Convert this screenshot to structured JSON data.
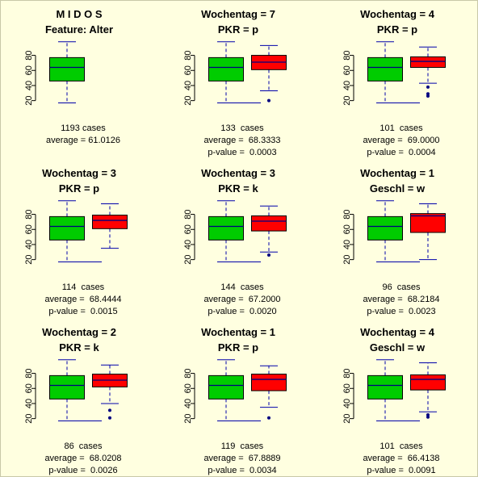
{
  "page": {
    "colors": {
      "background": "#ffffe0",
      "reference_box": "#00cc00",
      "compare_box": "#ff0000",
      "median_line": "#000080",
      "whisker": "#0000aa",
      "outlier": "#000080",
      "axis": "#000000"
    }
  },
  "chart_data": [
    {
      "type": "boxplot",
      "title": "M I D O S",
      "subtitle": "Feature: Alter",
      "yticks": [
        20,
        40,
        60,
        80
      ],
      "ylim": [
        10,
        102
      ],
      "boxes": [
        {
          "role": "reference",
          "min": 17,
          "q1": 46,
          "median": 64,
          "q3": 77,
          "max": 98,
          "outliers": []
        }
      ],
      "text": [
        "1193 cases",
        "average = 61.0126"
      ]
    },
    {
      "type": "boxplot",
      "title": "Wochentag = 7",
      "subtitle": "PKR = p",
      "yticks": [
        20,
        40,
        60,
        80
      ],
      "ylim": [
        10,
        102
      ],
      "boxes": [
        {
          "role": "reference",
          "min": 17,
          "q1": 46,
          "median": 64,
          "q3": 77,
          "max": 98,
          "outliers": []
        },
        {
          "role": "compare",
          "min": 33,
          "q1": 61,
          "median": 71,
          "q3": 80,
          "max": 93,
          "outliers": [
            20
          ]
        }
      ],
      "text": [
        "133  cases",
        "average =  68.3333",
        "p-value =  0.0003"
      ]
    },
    {
      "type": "boxplot",
      "title": "Wochentag = 4",
      "subtitle": "PKR = p",
      "yticks": [
        20,
        40,
        60,
        80
      ],
      "ylim": [
        10,
        102
      ],
      "boxes": [
        {
          "role": "reference",
          "min": 17,
          "q1": 46,
          "median": 64,
          "q3": 77,
          "max": 98,
          "outliers": []
        },
        {
          "role": "compare",
          "min": 43,
          "q1": 64,
          "median": 72,
          "q3": 78,
          "max": 91,
          "outliers": [
            38,
            29,
            26
          ]
        }
      ],
      "text": [
        "101  cases",
        "average =  69.0000",
        "p-value =  0.0004"
      ]
    },
    {
      "type": "boxplot",
      "title": "Wochentag = 3",
      "subtitle": "PKR = p",
      "yticks": [
        20,
        40,
        60,
        80
      ],
      "ylim": [
        10,
        102
      ],
      "boxes": [
        {
          "role": "reference",
          "min": 17,
          "q1": 46,
          "median": 64,
          "q3": 77,
          "max": 98,
          "outliers": []
        },
        {
          "role": "compare",
          "min": 35,
          "q1": 61,
          "median": 72,
          "q3": 79,
          "max": 94,
          "outliers": []
        }
      ],
      "text": [
        "114  cases",
        "average =  68.4444",
        "p-value =  0.0015"
      ]
    },
    {
      "type": "boxplot",
      "title": "Wochentag = 3",
      "subtitle": "PKR = k",
      "yticks": [
        20,
        40,
        60,
        80
      ],
      "ylim": [
        10,
        102
      ],
      "boxes": [
        {
          "role": "reference",
          "min": 17,
          "q1": 46,
          "median": 64,
          "q3": 77,
          "max": 98,
          "outliers": []
        },
        {
          "role": "compare",
          "min": 30,
          "q1": 58,
          "median": 71,
          "q3": 78,
          "max": 91,
          "outliers": [
            26
          ]
        }
      ],
      "text": [
        "144  cases",
        "average =  67.2000",
        "p-value =  0.0020"
      ]
    },
    {
      "type": "boxplot",
      "title": "Wochentag = 1",
      "subtitle": "Geschl = w",
      "yticks": [
        20,
        40,
        60,
        80
      ],
      "ylim": [
        10,
        102
      ],
      "boxes": [
        {
          "role": "reference",
          "min": 17,
          "q1": 46,
          "median": 64,
          "q3": 77,
          "max": 98,
          "outliers": []
        },
        {
          "role": "compare",
          "min": 20,
          "q1": 56,
          "median": 78,
          "q3": 81,
          "max": 94,
          "outliers": []
        }
      ],
      "text": [
        "96  cases",
        "average =  68.2184",
        "p-value =  0.0023"
      ]
    },
    {
      "type": "boxplot",
      "title": "Wochentag = 2",
      "subtitle": "PKR = k",
      "yticks": [
        20,
        40,
        60,
        80
      ],
      "ylim": [
        10,
        102
      ],
      "boxes": [
        {
          "role": "reference",
          "min": 17,
          "q1": 46,
          "median": 64,
          "q3": 77,
          "max": 98,
          "outliers": []
        },
        {
          "role": "compare",
          "min": 40,
          "q1": 62,
          "median": 71,
          "q3": 79,
          "max": 91,
          "outliers": [
            31,
            21
          ]
        }
      ],
      "text": [
        "86  cases",
        "average =  68.0208",
        "p-value =  0.0026"
      ]
    },
    {
      "type": "boxplot",
      "title": "Wochentag = 1",
      "subtitle": "PKR = p",
      "yticks": [
        20,
        40,
        60,
        80
      ],
      "ylim": [
        10,
        102
      ],
      "boxes": [
        {
          "role": "reference",
          "min": 17,
          "q1": 46,
          "median": 64,
          "q3": 77,
          "max": 98,
          "outliers": []
        },
        {
          "role": "compare",
          "min": 35,
          "q1": 57,
          "median": 72,
          "q3": 79,
          "max": 90,
          "outliers": [
            21
          ]
        }
      ],
      "text": [
        "119  cases",
        "average =  67.8889",
        "p-value =  0.0034"
      ]
    },
    {
      "type": "boxplot",
      "title": "Wochentag = 4",
      "subtitle": "Geschl = w",
      "yticks": [
        20,
        40,
        60,
        80
      ],
      "ylim": [
        10,
        102
      ],
      "boxes": [
        {
          "role": "reference",
          "min": 17,
          "q1": 46,
          "median": 64,
          "q3": 77,
          "max": 98,
          "outliers": []
        },
        {
          "role": "compare",
          "min": 29,
          "q1": 58,
          "median": 72,
          "q3": 78,
          "max": 94,
          "outliers": [
            25,
            22
          ]
        }
      ],
      "text": [
        "101  cases",
        "average =  66.4138",
        "p-value =  0.0091"
      ]
    }
  ]
}
